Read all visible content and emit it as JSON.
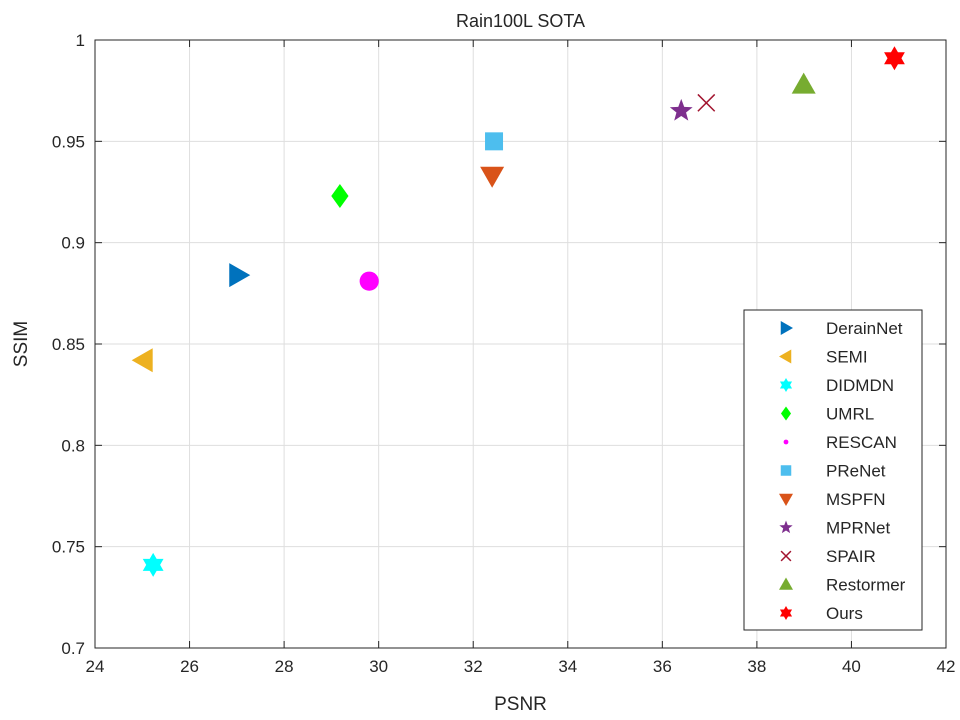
{
  "chart_data": {
    "type": "scatter",
    "title": "Rain100L SOTA",
    "xlabel": "PSNR",
    "ylabel": "SSIM",
    "xlim": [
      24,
      42
    ],
    "ylim": [
      0.7,
      1.0
    ],
    "xticks": [
      24,
      26,
      28,
      30,
      32,
      34,
      36,
      38,
      40,
      42
    ],
    "yticks": [
      0.7,
      0.75,
      0.8,
      0.85,
      0.9,
      0.95,
      1.0
    ],
    "xtick_labels": [
      "24",
      "26",
      "28",
      "30",
      "32",
      "34",
      "36",
      "38",
      "40",
      "42"
    ],
    "ytick_labels": [
      "0.7",
      "0.75",
      "0.8",
      "0.85",
      "0.9",
      "0.95",
      "1"
    ],
    "grid": true,
    "legend_position": "bottom-right",
    "series": [
      {
        "name": "DerainNet",
        "x": 27.03,
        "y": 0.884,
        "marker": "triangle-right",
        "color": "#0072BD"
      },
      {
        "name": "SEMI",
        "x": 25.03,
        "y": 0.842,
        "marker": "triangle-left",
        "color": "#EDB120"
      },
      {
        "name": "DIDMDN",
        "x": 25.23,
        "y": 0.741,
        "marker": "hexagram",
        "color": "#00FFFF"
      },
      {
        "name": "UMRL",
        "x": 29.18,
        "y": 0.923,
        "marker": "diamond",
        "color": "#00FF00"
      },
      {
        "name": "RESCAN",
        "x": 29.8,
        "y": 0.881,
        "marker": "circle",
        "color": "#FF00FF"
      },
      {
        "name": "PReNet",
        "x": 32.44,
        "y": 0.95,
        "marker": "square",
        "color": "#4DBEEE"
      },
      {
        "name": "MSPFN",
        "x": 32.4,
        "y": 0.933,
        "marker": "triangle-down",
        "color": "#D95319"
      },
      {
        "name": "MPRNet",
        "x": 36.4,
        "y": 0.965,
        "marker": "pentagram",
        "color": "#7E2F8E"
      },
      {
        "name": "SPAIR",
        "x": 36.93,
        "y": 0.969,
        "marker": "x",
        "color": "#A2142F"
      },
      {
        "name": "Restormer",
        "x": 38.99,
        "y": 0.978,
        "marker": "triangle-up",
        "color": "#77AC30"
      },
      {
        "name": "Ours",
        "x": 40.91,
        "y": 0.991,
        "marker": "hexagram",
        "color": "#FF0000"
      }
    ]
  }
}
